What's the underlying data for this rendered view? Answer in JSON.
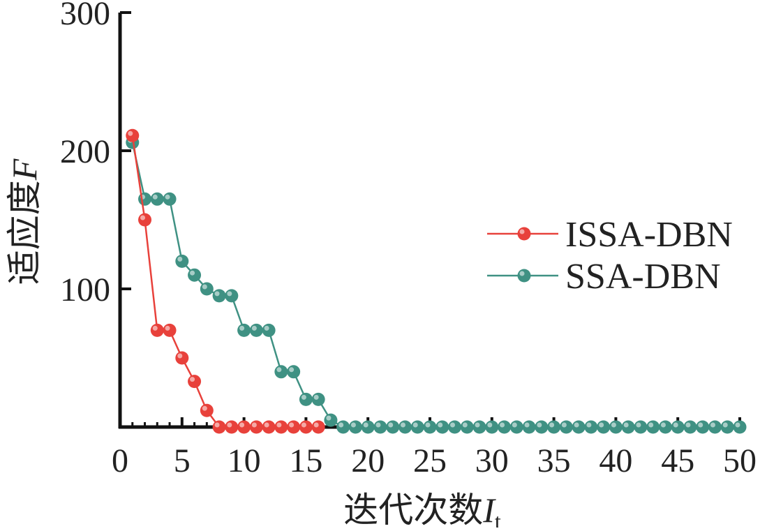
{
  "chart_data": {
    "type": "line",
    "title": "",
    "xlabel": "迭代次数",
    "xlabel_var": "I",
    "xlabel_sub": "t",
    "ylabel": "适应度",
    "ylabel_var": "F",
    "xlim": [
      0,
      50
    ],
    "ylim": [
      0,
      300
    ],
    "x_ticks": [
      "0",
      "5",
      "10",
      "15",
      "20",
      "25",
      "30",
      "35",
      "40",
      "45",
      "50"
    ],
    "y_ticks": [
      "100",
      "200",
      "300"
    ],
    "grid": false,
    "legend_position": "right",
    "series": [
      {
        "name": "ISSA-DBN",
        "color": "#e8413b",
        "x": [
          1,
          2,
          3,
          4,
          5,
          6,
          7,
          8,
          9,
          10,
          11,
          12,
          13,
          14,
          15,
          16
        ],
        "y": [
          211,
          150,
          70,
          70,
          50,
          33,
          12,
          0,
          0,
          0,
          0,
          0,
          0,
          0,
          0,
          0
        ]
      },
      {
        "name": "SSA-DBN",
        "color": "#3f9183",
        "x": [
          1,
          2,
          3,
          4,
          5,
          6,
          7,
          8,
          9,
          10,
          11,
          12,
          13,
          14,
          15,
          16,
          17,
          18,
          19,
          20,
          21,
          22,
          23,
          24,
          25,
          26,
          27,
          28,
          29,
          30,
          31,
          32,
          33,
          34,
          35,
          36,
          37,
          38,
          39,
          40,
          41,
          42,
          43,
          44,
          45,
          46,
          47,
          48,
          49,
          50
        ],
        "y": [
          206,
          165,
          165,
          165,
          120,
          110,
          100,
          95,
          95,
          70,
          70,
          70,
          40,
          40,
          20,
          20,
          5,
          0,
          0,
          0,
          0,
          0,
          0,
          0,
          0,
          0,
          0,
          0,
          0,
          0,
          0,
          0,
          0,
          0,
          0,
          0,
          0,
          0,
          0,
          0,
          0,
          0,
          0,
          0,
          0,
          0,
          0,
          0,
          0,
          0
        ]
      }
    ]
  }
}
